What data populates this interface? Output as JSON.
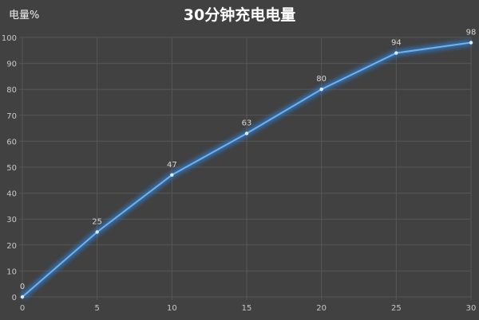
{
  "chart_data": {
    "type": "line",
    "title": "30分钟充电电量",
    "ylabel": "电量%",
    "xlabel": "",
    "x": [
      0,
      5,
      10,
      15,
      20,
      25,
      30
    ],
    "series": [
      {
        "values": [
          0,
          25,
          47,
          63,
          80,
          94,
          98
        ]
      }
    ],
    "xlim": [
      0,
      30
    ],
    "ylim": [
      0,
      100
    ],
    "xticks": [
      0,
      5,
      10,
      15,
      20,
      25,
      30
    ],
    "yticks": [
      0,
      10,
      20,
      30,
      40,
      50,
      60,
      70,
      80,
      90,
      100
    ],
    "grid": true,
    "data_labels": true,
    "colors": {
      "background": "#414141",
      "grid": "#575757",
      "line": "#6fb2ec",
      "glow": "#2f7fd6"
    }
  }
}
